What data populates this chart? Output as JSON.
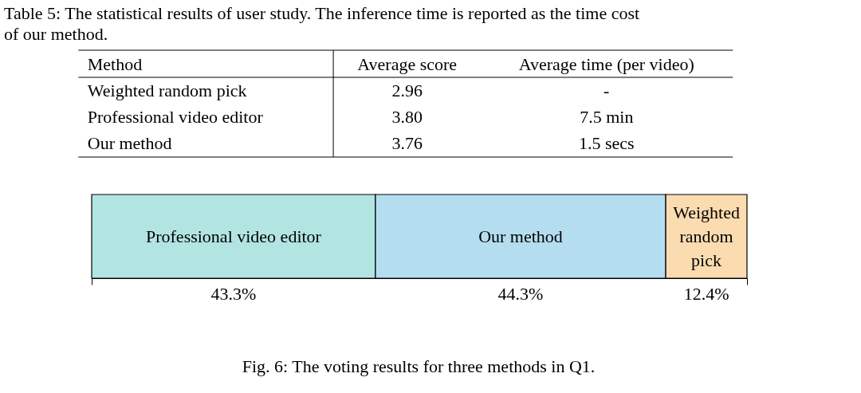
{
  "chart_data": [
    {
      "type": "other",
      "title": "Table 5: The statistical results of user study. The inference time is reported as the time cost of our method.",
      "annotations": [
        "Method",
        "Average score",
        "Average time (per video)",
        "Weighted random pick",
        "2.96",
        "-",
        "Professional video editor",
        "3.80",
        "7.5 min",
        "Our method",
        "3.76",
        "1.5 secs"
      ]
    },
    {
      "type": "bar",
      "orientation": "horizontal",
      "stacked": true,
      "categories": [
        null
      ],
      "series": [
        {
          "name": "Professional video editor",
          "color": "#b2e4e2",
          "values": [
            43.3
          ],
          "value_labels": [
            "43.3%"
          ]
        },
        {
          "name": "Our method",
          "color": "#b4def0",
          "values": [
            44.3
          ],
          "value_labels": [
            "44.3%"
          ]
        },
        {
          "name": "Weighted random pick",
          "color": "#fbdbb0",
          "values": [
            12.4
          ],
          "value_labels": [
            "12.4%"
          ]
        }
      ],
      "annotations": [
        "Fig. 6: The voting results for three methods in Q1."
      ]
    }
  ]
}
